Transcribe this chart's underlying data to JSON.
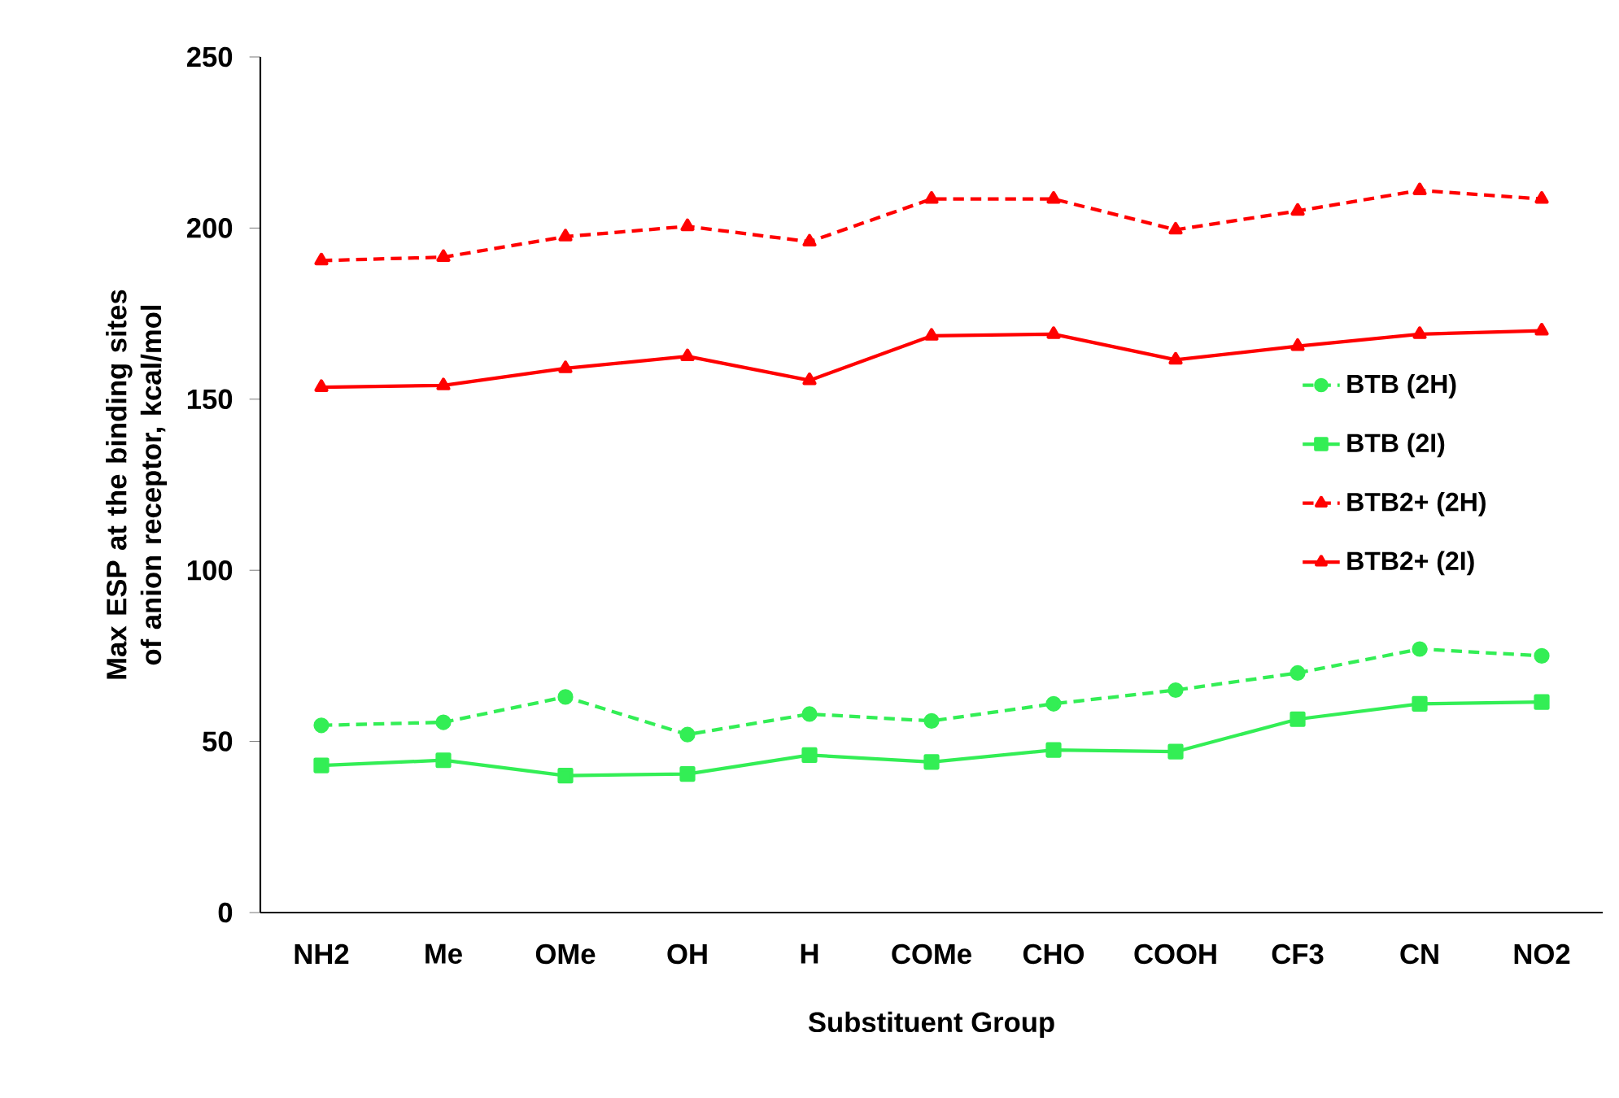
{
  "chart_data": {
    "type": "line",
    "xlabel": "Substituent Group",
    "ylabel": "Max ESP at the binding sites of anion receptor, kcal/mol",
    "categories": [
      "NH2",
      "Me",
      "OMe",
      "OH",
      "H",
      "COMe",
      "CHO",
      "COOH",
      "CF3",
      "CN",
      "NO2"
    ],
    "ylim": [
      0,
      250
    ],
    "yticks": [
      0,
      50,
      100,
      150,
      200,
      250
    ],
    "grid": false,
    "legend": "right",
    "series": [
      {
        "name": "BTB  (2H)",
        "color": "#33ee55",
        "line_style": "dashed",
        "marker": "circle",
        "values": [
          54.7,
          55.6,
          63,
          52,
          58,
          56,
          61,
          65,
          70,
          77,
          75
        ]
      },
      {
        "name": "BTB (2I)",
        "color": "#33ee55",
        "line_style": "solid",
        "marker": "square",
        "values": [
          43,
          44.5,
          40,
          40.5,
          46,
          44,
          47.5,
          47,
          56.5,
          61,
          61.5
        ]
      },
      {
        "name": "BTB2+ (2H)",
        "color": "#ff0000",
        "line_style": "dashed",
        "marker": "triangle",
        "values": [
          190.5,
          191.5,
          197.5,
          200.5,
          196,
          208.5,
          208.5,
          199.5,
          205,
          211,
          208.5
        ]
      },
      {
        "name": "BTB2+ (2I)",
        "color": "#ff0000",
        "line_style": "solid",
        "marker": "triangle",
        "values": [
          153.5,
          154,
          159,
          162.5,
          155.5,
          168.5,
          169,
          161.5,
          165.5,
          169,
          170
        ]
      }
    ]
  }
}
